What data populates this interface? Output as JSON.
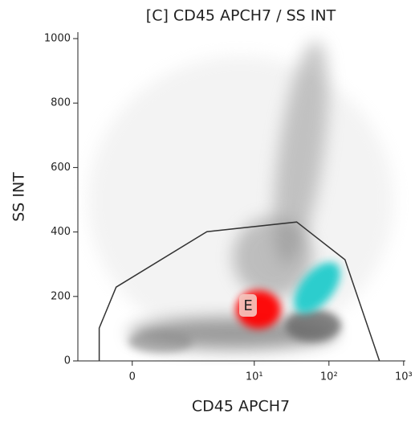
{
  "chart_data": {
    "type": "scatter",
    "title": "[C] CD45 APCH7 / SS INT",
    "x_label": "CD45 APCH7",
    "y_label": "SS INT",
    "xscale": "asinh",
    "xlim": [
      -1.2,
      1055
    ],
    "ylim": [
      0,
      1020
    ],
    "xticks": [
      0,
      {
        "value": 10,
        "label": "10¹"
      },
      {
        "value": 100,
        "label": "10²"
      },
      {
        "value": 1000,
        "label": "10³"
      }
    ],
    "yticks": [
      0,
      200,
      400,
      600,
      800,
      1000
    ],
    "gate": {
      "name": "E",
      "color": "#333333",
      "x": [
        -0.56,
        -0.56,
        -0.24,
        2.3,
        37,
        164,
        474
      ],
      "y": [
        0,
        102,
        229,
        401,
        431,
        314,
        0
      ]
    }
  }
}
